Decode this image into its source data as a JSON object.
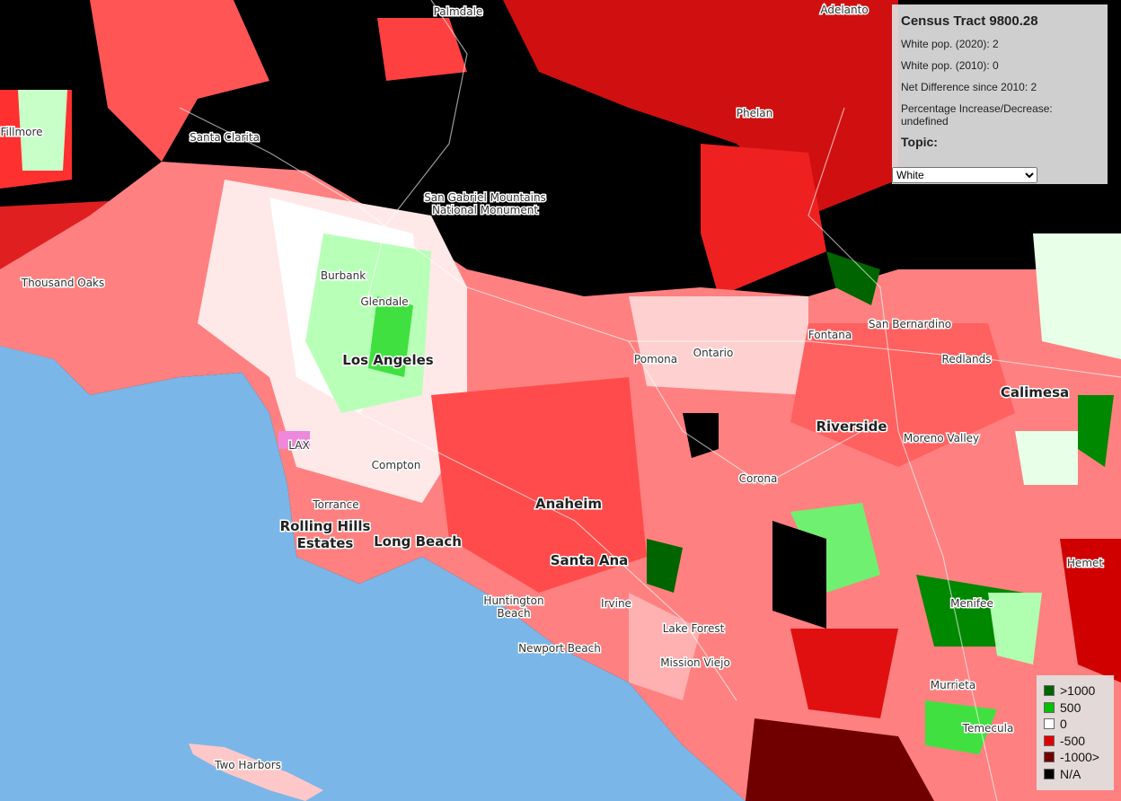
{
  "info_panel": {
    "title": "Census Tract 9800.28",
    "lines": [
      "White pop. (2020): 2",
      "White pop. (2010): 0",
      "Net Difference since 2010: 2",
      "Percentage Increase/Decrease: undefined"
    ],
    "topic_label": "Topic:",
    "topic_selected": "White"
  },
  "legend": [
    {
      "label": ">1000",
      "color": "#006400"
    },
    {
      "label": "500",
      "color": "#00c000"
    },
    {
      "label": "0",
      "color": "#ffffff"
    },
    {
      "label": "-500",
      "color": "#e00000"
    },
    {
      "label": "-1000>",
      "color": "#700000"
    },
    {
      "label": "N/A",
      "color": "#000000"
    }
  ],
  "places": [
    {
      "name": "Palmdale"
    },
    {
      "name": "Adelanto"
    },
    {
      "name": "Fillmore"
    },
    {
      "name": "Santa Clarita"
    },
    {
      "name": "Phelan"
    },
    {
      "name": "San Gabriel Mountains National Monument"
    },
    {
      "name": "Thousand Oaks"
    },
    {
      "name": "Burbank"
    },
    {
      "name": "Glendale"
    },
    {
      "name": "Los Angeles"
    },
    {
      "name": "Pomona"
    },
    {
      "name": "Ontario"
    },
    {
      "name": "Fontana"
    },
    {
      "name": "San Bernardino"
    },
    {
      "name": "Redlands"
    },
    {
      "name": "Calimesa"
    },
    {
      "name": "Riverside"
    },
    {
      "name": "Moreno Valley"
    },
    {
      "name": "LAX"
    },
    {
      "name": "Compton"
    },
    {
      "name": "Corona"
    },
    {
      "name": "Torrance"
    },
    {
      "name": "Anaheim"
    },
    {
      "name": "Rolling Hills Estates"
    },
    {
      "name": "Long Beach"
    },
    {
      "name": "Santa Ana"
    },
    {
      "name": "Hemet"
    },
    {
      "name": "Huntington Beach"
    },
    {
      "name": "Irvine"
    },
    {
      "name": "Menifee"
    },
    {
      "name": "Lake Forest"
    },
    {
      "name": "Newport Beach"
    },
    {
      "name": "Mission Viejo"
    },
    {
      "name": "Murrieta"
    },
    {
      "name": "Temecula"
    },
    {
      "name": "Two Harbors"
    }
  ]
}
